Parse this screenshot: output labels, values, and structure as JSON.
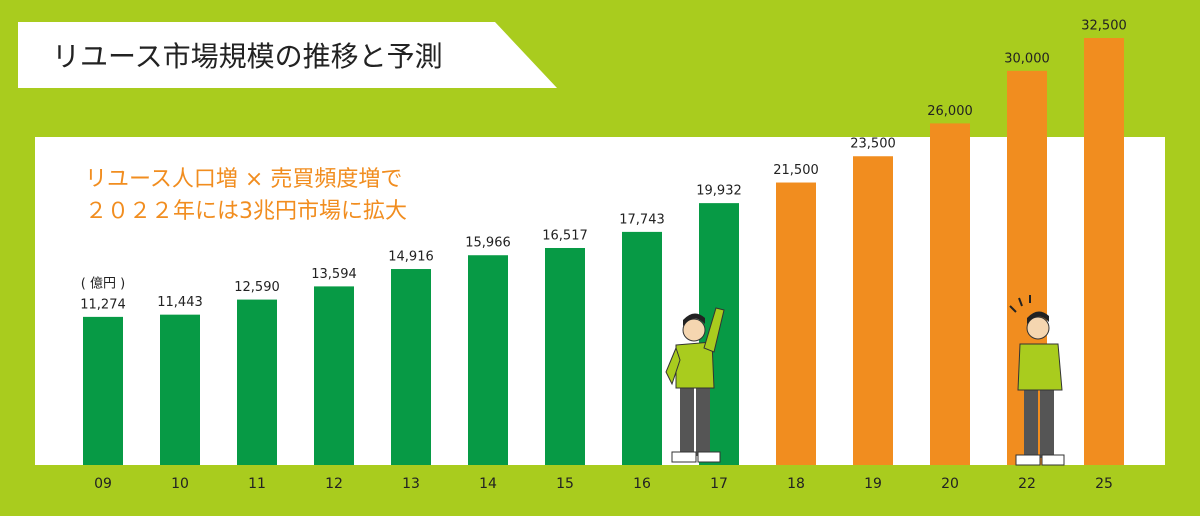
{
  "chart_data": {
    "type": "bar",
    "title": "リユース市場規模の推移と予測",
    "subtitle": [
      "リユース人口増 × 売買頻度増で",
      "２０２２年には3兆円市場に拡大"
    ],
    "unit": "( 億円 )",
    "categories": [
      "09",
      "10",
      "11",
      "12",
      "13",
      "14",
      "15",
      "16",
      "17",
      "18",
      "19",
      "20",
      "22",
      "25"
    ],
    "values": [
      11274,
      11443,
      12590,
      13594,
      14916,
      15966,
      16517,
      17743,
      19932,
      21500,
      23500,
      26000,
      30000,
      32500
    ],
    "value_labels": [
      "11,274",
      "11,443",
      "12,590",
      "13,594",
      "14,916",
      "15,966",
      "16,517",
      "17,743",
      "19,932",
      "21,500",
      "23,500",
      "26,000",
      "30,000",
      "32,500"
    ],
    "colors": [
      "#079a45",
      "#079a45",
      "#079a45",
      "#079a45",
      "#079a45",
      "#079a45",
      "#079a45",
      "#079a45",
      "#079a45",
      "#f18d1f",
      "#f18d1f",
      "#f18d1f",
      "#f18d1f",
      "#f18d1f"
    ]
  }
}
